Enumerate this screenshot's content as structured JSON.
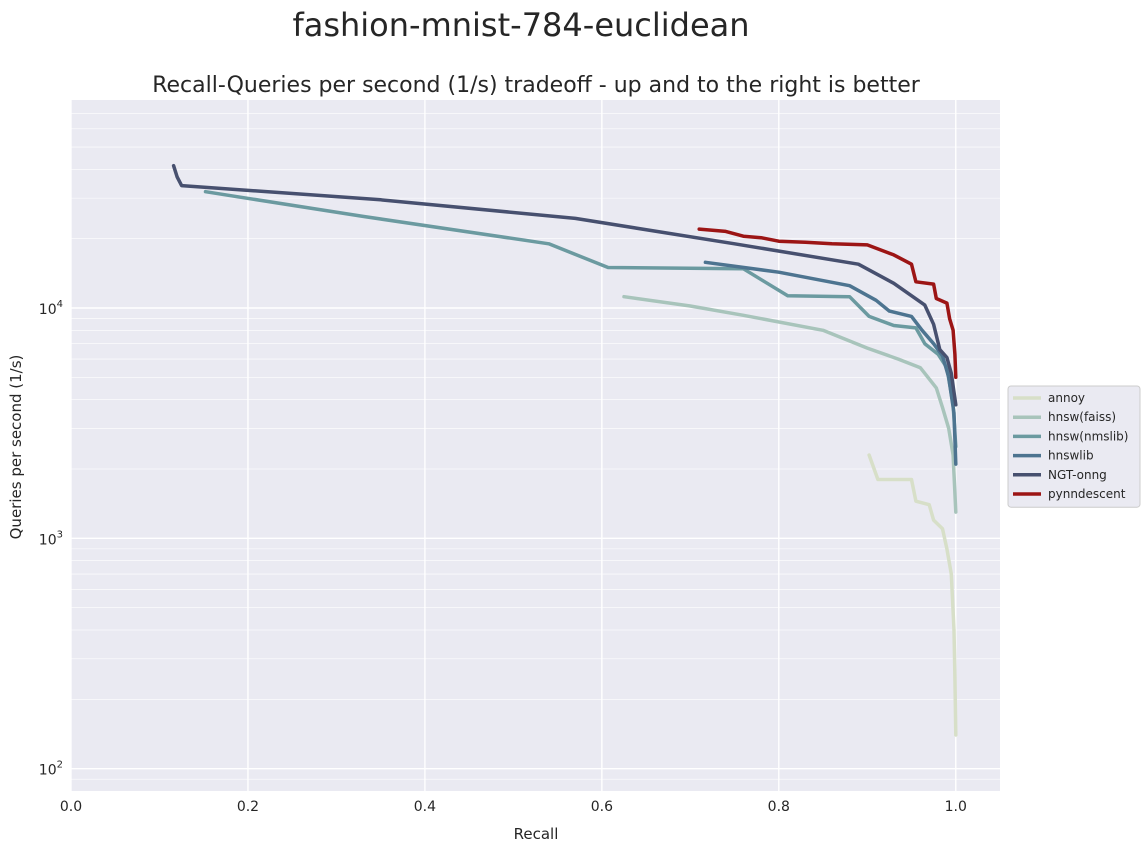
{
  "chart_data": {
    "type": "line",
    "suptitle": "fashion-mnist-784-euclidean",
    "title": "Recall-Queries per second (1/s) tradeoff - up and to the right is better",
    "xlabel": "Recall",
    "ylabel": "Queries per second (1/s)",
    "xlim": [
      0.0,
      1.05
    ],
    "ylim": [
      80,
      80000
    ],
    "yscale": "log",
    "grid": true,
    "legend_position": "right",
    "xticks": [
      {
        "value": 0.0,
        "label": "0.0"
      },
      {
        "value": 0.2,
        "label": "0.2"
      },
      {
        "value": 0.4,
        "label": "0.4"
      },
      {
        "value": 0.6,
        "label": "0.6"
      },
      {
        "value": 0.8,
        "label": "0.8"
      },
      {
        "value": 1.0,
        "label": "1.0"
      }
    ],
    "yticks": [
      {
        "value": 100,
        "base": "10",
        "exp": "2"
      },
      {
        "value": 1000,
        "base": "10",
        "exp": "3"
      },
      {
        "value": 10000,
        "base": "10",
        "exp": "4"
      }
    ],
    "series": [
      {
        "name": "annoy",
        "color": "#d7dfc8",
        "x": [
          0.902,
          0.912,
          0.95,
          0.955,
          0.97,
          0.975,
          0.985,
          0.99,
          0.995,
          0.998,
          0.999,
          1.0
        ],
        "y": [
          2300,
          1800,
          1800,
          1450,
          1400,
          1200,
          1100,
          900,
          700,
          400,
          250,
          140
        ]
      },
      {
        "name": "hnsw(faiss)",
        "color": "#a8c4bb",
        "x": [
          0.625,
          0.7,
          0.76,
          0.85,
          0.9,
          0.935,
          0.96,
          0.978,
          0.985,
          0.992,
          0.997,
          1.0
        ],
        "y": [
          11200,
          10200,
          9300,
          8000,
          6700,
          6000,
          5500,
          4500,
          3700,
          3000,
          2300,
          1300
        ]
      },
      {
        "name": "hnsw(nmslib)",
        "color": "#6b9aa0",
        "x": [
          0.152,
          0.33,
          0.54,
          0.607,
          0.76,
          0.81,
          0.88,
          0.902,
          0.93,
          0.955,
          0.965,
          0.98,
          0.99,
          0.997,
          1.0
        ],
        "y": [
          32000,
          25000,
          19000,
          15000,
          14800,
          11300,
          11200,
          9200,
          8400,
          8200,
          7000,
          6300,
          5500,
          3800,
          2500
        ]
      },
      {
        "name": "hnswlib",
        "color": "#4d7490",
        "x": [
          0.717,
          0.8,
          0.88,
          0.91,
          0.925,
          0.95,
          0.962,
          0.975,
          0.985,
          0.992,
          0.998,
          1.0
        ],
        "y": [
          15800,
          14300,
          12500,
          10800,
          9700,
          9200,
          8000,
          7000,
          6200,
          5000,
          3500,
          2100
        ]
      },
      {
        "name": "NGT-onng",
        "color": "#47506f",
        "x": [
          0.116,
          0.12,
          0.125,
          0.35,
          0.57,
          0.75,
          0.89,
          0.93,
          0.965,
          0.975,
          0.982,
          0.99,
          0.995,
          1.0
        ],
        "y": [
          41500,
          37000,
          34000,
          29500,
          24500,
          19000,
          15500,
          12800,
          10300,
          8500,
          6600,
          6100,
          5200,
          3800
        ]
      },
      {
        "name": "pynndescent",
        "color": "#9c1515",
        "x": [
          0.71,
          0.74,
          0.76,
          0.78,
          0.8,
          0.83,
          0.86,
          0.9,
          0.93,
          0.95,
          0.955,
          0.975,
          0.978,
          0.99,
          0.993,
          0.997,
          0.999,
          1.0
        ],
        "y": [
          22000,
          21500,
          20500,
          20200,
          19500,
          19300,
          19000,
          18800,
          17000,
          15500,
          13000,
          12700,
          11000,
          10500,
          9000,
          8000,
          6300,
          5000
        ]
      }
    ]
  }
}
